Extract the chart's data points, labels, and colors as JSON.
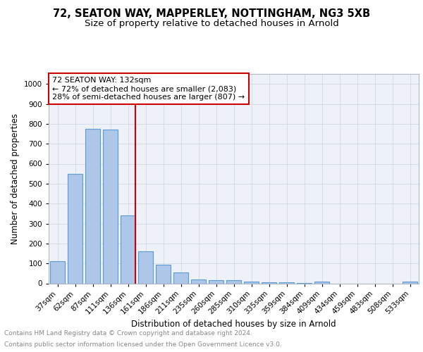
{
  "title1": "72, SEATON WAY, MAPPERLEY, NOTTINGHAM, NG3 5XB",
  "title2": "Size of property relative to detached houses in Arnold",
  "xlabel": "Distribution of detached houses by size in Arnold",
  "ylabel": "Number of detached properties",
  "categories": [
    "37sqm",
    "62sqm",
    "87sqm",
    "111sqm",
    "136sqm",
    "161sqm",
    "186sqm",
    "211sqm",
    "235sqm",
    "260sqm",
    "285sqm",
    "310sqm",
    "335sqm",
    "359sqm",
    "384sqm",
    "409sqm",
    "434sqm",
    "459sqm",
    "483sqm",
    "508sqm",
    "533sqm"
  ],
  "values": [
    110,
    550,
    775,
    770,
    340,
    160,
    95,
    55,
    20,
    15,
    15,
    10,
    5,
    5,
    2,
    10,
    0,
    0,
    0,
    0,
    10
  ],
  "bar_color": "#aec6e8",
  "bar_edge_color": "#5b9bd5",
  "bar_edge_width": 0.8,
  "vline_index": 4,
  "vline_color": "#cc0000",
  "annotation_title": "72 SEATON WAY: 132sqm",
  "annotation_line1": "← 72% of detached houses are smaller (2,083)",
  "annotation_line2": "28% of semi-detached houses are larger (807) →",
  "annotation_box_color": "#cc0000",
  "annotation_bg": "#ffffff",
  "ylim": [
    0,
    1050
  ],
  "yticks": [
    0,
    100,
    200,
    300,
    400,
    500,
    600,
    700,
    800,
    900,
    1000
  ],
  "grid_color": "#d0d8e8",
  "bg_color": "#eef2f8",
  "footer_line1": "Contains HM Land Registry data © Crown copyright and database right 2024.",
  "footer_line2": "Contains public sector information licensed under the Open Government Licence v3.0.",
  "title1_fontsize": 10.5,
  "title2_fontsize": 9.5,
  "xlabel_fontsize": 8.5,
  "ylabel_fontsize": 8.5,
  "tick_fontsize": 7.5,
  "annot_fontsize": 8,
  "footer_fontsize": 6.5
}
